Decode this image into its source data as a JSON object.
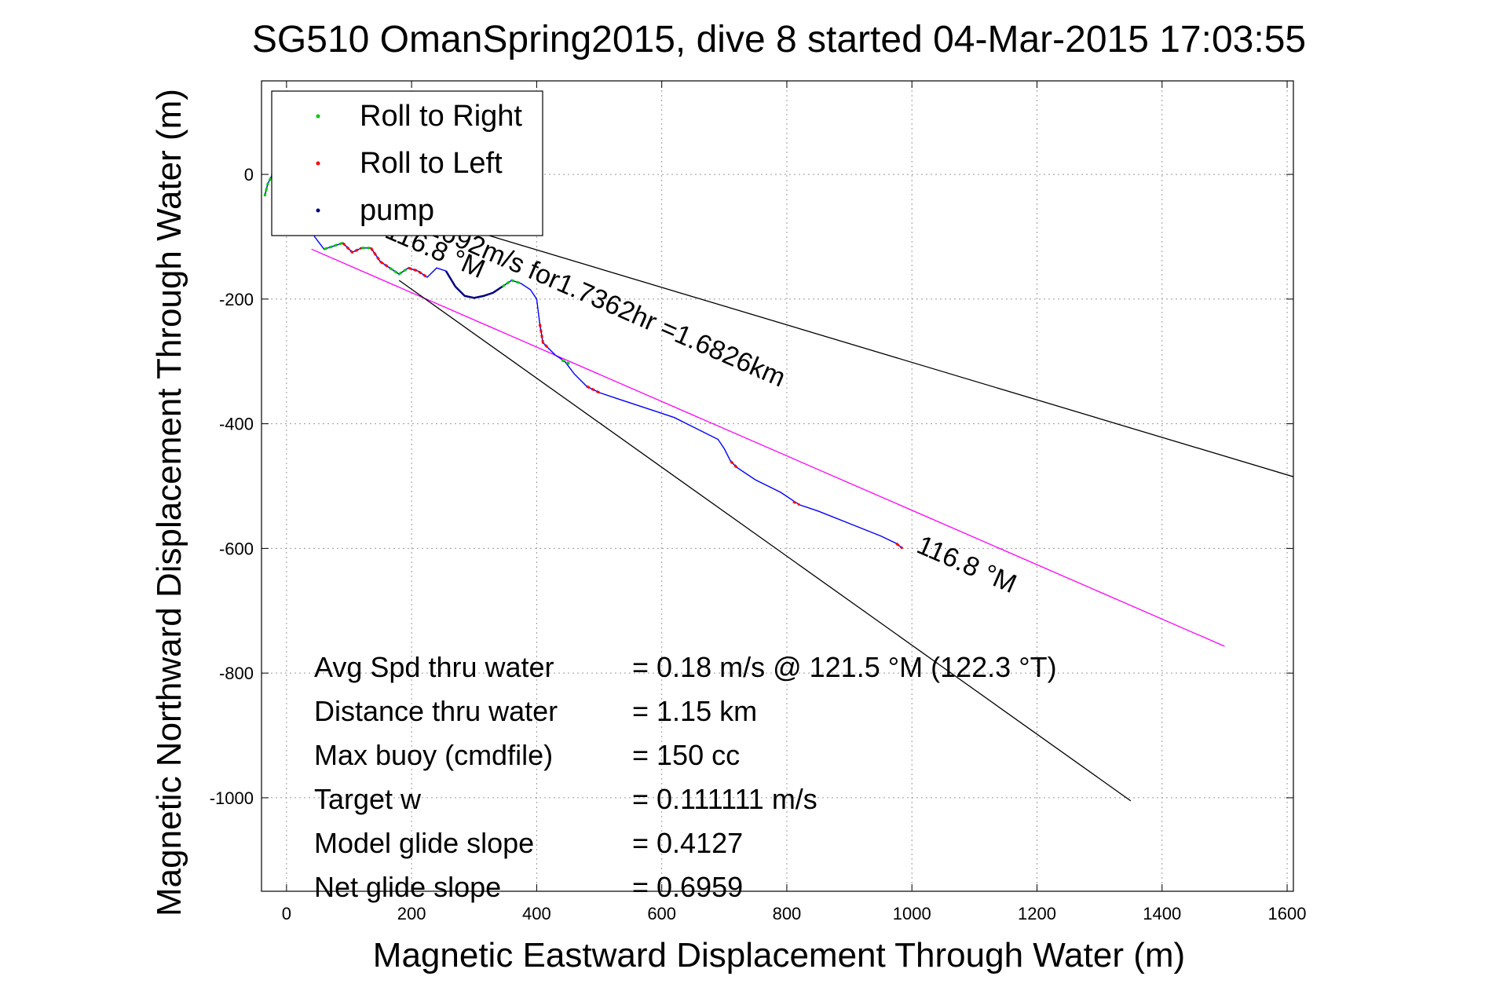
{
  "chart_data": {
    "type": "line",
    "title": "SG510 OmanSpring2015, dive 8 started 04-Mar-2015 17:03:55",
    "xlabel": "Magnetic Eastward Displacement Through Water (m)",
    "ylabel": "Magnetic Northward Displacement Through Water (m)",
    "xlim": [
      -40,
      1610
    ],
    "ylim": [
      -1150,
      150
    ],
    "xticks": [
      0,
      200,
      400,
      600,
      800,
      1000,
      1200,
      1400,
      1600
    ],
    "yticks": [
      -1000,
      -800,
      -600,
      -400,
      -200,
      0
    ],
    "grid": true,
    "legend": {
      "position": "top-left",
      "entries": [
        {
          "name": "Roll to Right",
          "color": "#00cc00"
        },
        {
          "name": "Roll to Left",
          "color": "#ff0000"
        },
        {
          "name": "pump",
          "color": "#000080"
        }
      ]
    },
    "track": {
      "color": "#0000ff",
      "x": [
        -35,
        -30,
        -20,
        -8,
        5,
        18,
        30,
        45,
        60,
        75,
        90,
        105,
        120,
        135,
        150,
        165,
        180,
        195,
        210,
        225,
        240,
        255,
        270,
        285,
        300,
        315,
        330,
        345,
        360,
        375,
        390,
        400,
        405,
        410,
        420,
        430,
        445,
        460,
        480,
        500,
        530,
        560,
        590,
        620,
        660,
        690,
        700,
        710,
        720,
        750,
        790,
        820,
        850,
        900,
        950,
        975,
        985
      ],
      "y": [
        -35,
        -15,
        5,
        10,
        -5,
        -30,
        -60,
        -100,
        -120,
        -115,
        -110,
        -125,
        -118,
        -118,
        -140,
        -150,
        -160,
        -150,
        -155,
        -165,
        -150,
        -155,
        -180,
        -195,
        -198,
        -195,
        -190,
        -180,
        -170,
        -175,
        -185,
        -200,
        -240,
        -270,
        -280,
        -290,
        -300,
        -320,
        -340,
        -350,
        -360,
        -370,
        -380,
        -390,
        -410,
        -425,
        -440,
        -460,
        -470,
        -490,
        -510,
        -530,
        -540,
        -560,
        -580,
        -592,
        -600
      ]
    },
    "roll_right_segments": [
      {
        "x": [
          -35,
          -30,
          -20,
          -8,
          5,
          18,
          30
        ],
        "y": [
          -35,
          -15,
          5,
          10,
          -5,
          -30,
          -60
        ]
      },
      {
        "x": [
          60,
          75,
          90
        ],
        "y": [
          -120,
          -115,
          -110
        ]
      },
      {
        "x": [
          120,
          135
        ],
        "y": [
          -118,
          -118
        ]
      },
      {
        "x": [
          165,
          180,
          195
        ],
        "y": [
          -150,
          -160,
          -150
        ]
      },
      {
        "x": [
          345,
          360,
          375
        ],
        "y": [
          -180,
          -170,
          -175
        ]
      },
      {
        "x": [
          440,
          455
        ],
        "y": [
          -298,
          -305
        ]
      }
    ],
    "roll_left_segments": [
      {
        "x": [
          90,
          105,
          120
        ],
        "y": [
          -110,
          -125,
          -118
        ]
      },
      {
        "x": [
          135,
          150,
          165
        ],
        "y": [
          -118,
          -140,
          -150
        ]
      },
      {
        "x": [
          195,
          210,
          225
        ],
        "y": [
          -150,
          -155,
          -165
        ]
      },
      {
        "x": [
          405,
          410,
          420
        ],
        "y": [
          -240,
          -270,
          -280
        ]
      },
      {
        "x": [
          480,
          500
        ],
        "y": [
          -340,
          -350
        ]
      },
      {
        "x": [
          710,
          720
        ],
        "y": [
          -460,
          -470
        ]
      },
      {
        "x": [
          810,
          820
        ],
        "y": [
          -525,
          -530
        ]
      },
      {
        "x": [
          975,
          985
        ],
        "y": [
          -592,
          -600
        ]
      }
    ],
    "pump_segment": {
      "x": [
        255,
        270,
        285,
        300,
        315,
        330,
        345
      ],
      "y": [
        -155,
        -180,
        -195,
        -198,
        -195,
        -190,
        -180
      ]
    },
    "reference_lines": [
      {
        "name": "bearing-line",
        "color": "#ff00ff",
        "x": [
          40,
          1500
        ],
        "y": [
          -120,
          -757
        ]
      },
      {
        "name": "bound-upper",
        "color": "#000000",
        "x": [
          230,
          1610
        ],
        "y": [
          -70,
          -485
        ]
      },
      {
        "name": "bound-lower",
        "color": "#000000",
        "x": [
          180,
          1350
        ],
        "y": [
          -170,
          -1005
        ]
      }
    ],
    "annotations": [
      {
        "text": "0.2692m/s for1.7362hr =1.6826km",
        "x": 190,
        "y": -80,
        "angle": 23.5
      },
      {
        "text": "116.8 °M",
        "x": 155,
        "y": -100,
        "angle": 23.5
      },
      {
        "text": "116.8 °M",
        "x": 1005,
        "y": -605,
        "angle": 23.5
      }
    ],
    "stats": [
      {
        "label": "Avg Spd thru water",
        "value": "=  0.18 m/s @ 121.5 °M (122.3 °T)"
      },
      {
        "label": "Distance thru water",
        "value": "=  1.15 km"
      },
      {
        "label": "Max buoy (cmdfile)",
        "value": "= 150 cc"
      },
      {
        "label": "Target w",
        "value": "= 0.111111 m/s"
      },
      {
        "label": "Model glide slope",
        "value": "= 0.4127"
      },
      {
        "label": "Net glide slope",
        "value": "= 0.6959"
      }
    ]
  }
}
